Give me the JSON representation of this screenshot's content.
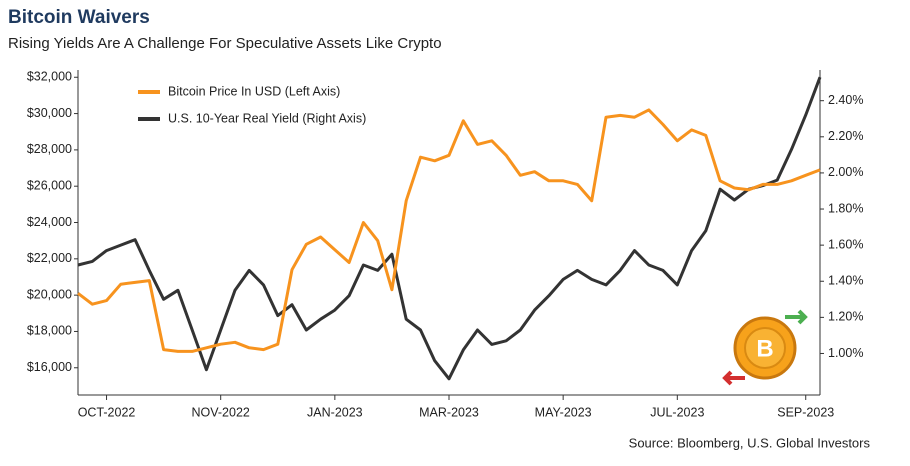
{
  "chart_data": {
    "type": "line",
    "title": "Bitcoin Waivers",
    "subtitle": "Rising Yields Are A Challenge For Speculative Assets Like Crypto",
    "source": "Source: Bloomberg, U.S. Global Investors",
    "categories": [
      null,
      null,
      "OCT-2022",
      null,
      null,
      null,
      null,
      null,
      null,
      null,
      "NOV-2022",
      null,
      null,
      null,
      null,
      null,
      null,
      null,
      "JAN-2023",
      null,
      null,
      null,
      null,
      null,
      null,
      null,
      "MAR-2023",
      null,
      null,
      null,
      null,
      null,
      null,
      null,
      "MAY-2023",
      null,
      null,
      null,
      null,
      null,
      null,
      null,
      "JUL-2023",
      null,
      null,
      null,
      null,
      null,
      null,
      null,
      null,
      "SEP-2023",
      null
    ],
    "series": [
      {
        "name": "Bitcoin Price In USD (Left Axis)",
        "color": "#f7931e",
        "axis": "y",
        "values": [
          20100,
          19500,
          19700,
          20600,
          20700,
          20800,
          17000,
          16900,
          16900,
          17100,
          17300,
          17400,
          17100,
          17000,
          17300,
          21400,
          22800,
          23200,
          22500,
          21800,
          24000,
          23000,
          20300,
          25200,
          27600,
          27400,
          27700,
          29600,
          28300,
          28500,
          27700,
          26600,
          26800,
          26300,
          26300,
          26100,
          25200,
          29800,
          29900,
          29800,
          30200,
          29400,
          28500,
          29100,
          28800,
          26300,
          25900,
          25800,
          26100,
          26100,
          26300,
          26600,
          26900
        ]
      },
      {
        "name": "U.S. 10-Year Real Yield (Right Axis)",
        "color": "#333333",
        "axis": "y2",
        "values": [
          1.49,
          1.51,
          1.57,
          1.6,
          1.63,
          1.46,
          1.3,
          1.35,
          1.13,
          0.91,
          1.13,
          1.35,
          1.46,
          1.38,
          1.21,
          1.27,
          1.13,
          1.19,
          1.24,
          1.32,
          1.49,
          1.46,
          1.55,
          1.19,
          1.13,
          0.96,
          0.86,
          1.02,
          1.13,
          1.05,
          1.07,
          1.13,
          1.24,
          1.32,
          1.41,
          1.46,
          1.41,
          1.38,
          1.46,
          1.57,
          1.49,
          1.46,
          1.38,
          1.57,
          1.68,
          1.91,
          1.85,
          1.91,
          1.93,
          1.96,
          2.13,
          2.32,
          2.53
        ]
      }
    ],
    "ylim": [
      14500,
      32400
    ],
    "yticks": [
      {
        "value": 16000,
        "label": "$16,000"
      },
      {
        "value": 18000,
        "label": "$18,000"
      },
      {
        "value": 20000,
        "label": "$20,000"
      },
      {
        "value": 22000,
        "label": "$22,000"
      },
      {
        "value": 24000,
        "label": "$24,000"
      },
      {
        "value": 26000,
        "label": "$26,000"
      },
      {
        "value": 28000,
        "label": "$28,000"
      },
      {
        "value": 30000,
        "label": "$30,000"
      },
      {
        "value": 32000,
        "label": "$32,000"
      }
    ],
    "y2lim": [
      0.77,
      2.57
    ],
    "y2ticks": [
      {
        "value": 1.0,
        "label": "1.00%"
      },
      {
        "value": 1.2,
        "label": "1.20%"
      },
      {
        "value": 1.4,
        "label": "1.40%"
      },
      {
        "value": 1.6,
        "label": "1.60%"
      },
      {
        "value": 1.8,
        "label": "1.80%"
      },
      {
        "value": 2.0,
        "label": "2.00%"
      },
      {
        "value": 2.2,
        "label": "2.20%"
      },
      {
        "value": 2.4,
        "label": "2.40%"
      }
    ],
    "grid": false
  }
}
